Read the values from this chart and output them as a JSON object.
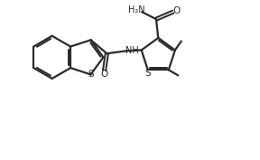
{
  "bg_color": "#ffffff",
  "line_color": "#2b2b2b",
  "line_width": 1.6,
  "fig_width": 2.88,
  "fig_height": 1.77,
  "dpi": 100,
  "xlim": [
    0,
    10
  ],
  "ylim": [
    0,
    6.15
  ],
  "font_size": 7.0
}
